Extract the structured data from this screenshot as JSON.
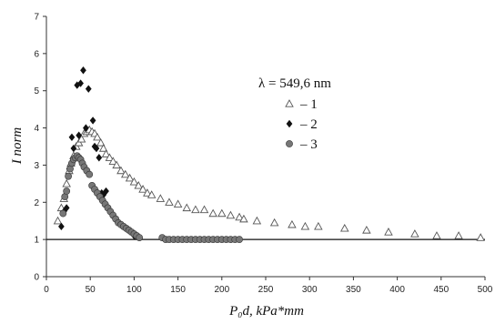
{
  "chart_data": {
    "type": "scatter",
    "xlabel": "P₀d, kPa*mm",
    "ylabel": "I norm",
    "xlim": [
      0,
      500
    ],
    "ylim": [
      0,
      7
    ],
    "xticks": [
      0,
      50,
      100,
      150,
      200,
      250,
      300,
      350,
      400,
      450,
      500
    ],
    "yticks": [
      0,
      1,
      2,
      3,
      4,
      5,
      6,
      7
    ],
    "reference_line": {
      "y": 1
    },
    "grid": false,
    "legend_title": "λ = 549,6 nm",
    "legend_position": "upper-right",
    "series": [
      {
        "name": "– 1",
        "marker": "triangle-open",
        "points": [
          [
            13,
            1.5
          ],
          [
            17,
            1.85
          ],
          [
            20,
            2.1
          ],
          [
            23,
            2.5
          ],
          [
            26,
            2.85
          ],
          [
            28,
            3.05
          ],
          [
            31,
            3.25
          ],
          [
            34,
            3.5
          ],
          [
            37,
            3.6
          ],
          [
            40,
            3.7
          ],
          [
            43,
            3.85
          ],
          [
            46,
            3.9
          ],
          [
            49,
            3.95
          ],
          [
            52,
            3.9
          ],
          [
            55,
            3.85
          ],
          [
            58,
            3.75
          ],
          [
            62,
            3.6
          ],
          [
            65,
            3.45
          ],
          [
            68,
            3.3
          ],
          [
            72,
            3.2
          ],
          [
            76,
            3.1
          ],
          [
            80,
            3.0
          ],
          [
            85,
            2.85
          ],
          [
            90,
            2.75
          ],
          [
            95,
            2.65
          ],
          [
            100,
            2.55
          ],
          [
            105,
            2.45
          ],
          [
            110,
            2.35
          ],
          [
            115,
            2.25
          ],
          [
            120,
            2.2
          ],
          [
            130,
            2.1
          ],
          [
            140,
            2.0
          ],
          [
            150,
            1.95
          ],
          [
            160,
            1.85
          ],
          [
            170,
            1.8
          ],
          [
            180,
            1.8
          ],
          [
            190,
            1.7
          ],
          [
            200,
            1.7
          ],
          [
            210,
            1.65
          ],
          [
            220,
            1.6
          ],
          [
            225,
            1.55
          ],
          [
            240,
            1.5
          ],
          [
            260,
            1.45
          ],
          [
            280,
            1.4
          ],
          [
            295,
            1.35
          ],
          [
            310,
            1.35
          ],
          [
            340,
            1.3
          ],
          [
            365,
            1.25
          ],
          [
            390,
            1.2
          ],
          [
            420,
            1.15
          ],
          [
            445,
            1.1
          ],
          [
            470,
            1.1
          ],
          [
            495,
            1.05
          ]
        ]
      },
      {
        "name": "– 2",
        "marker": "diamond-filled",
        "points": [
          [
            17,
            1.35
          ],
          [
            20,
            1.75
          ],
          [
            23,
            1.85
          ],
          [
            26,
            2.9
          ],
          [
            29,
            3.75
          ],
          [
            31,
            3.45
          ],
          [
            35,
            5.15
          ],
          [
            37,
            3.8
          ],
          [
            39,
            5.2
          ],
          [
            42,
            5.55
          ],
          [
            45,
            4.0
          ],
          [
            48,
            5.05
          ],
          [
            53,
            4.2
          ],
          [
            55,
            3.5
          ],
          [
            57,
            3.45
          ],
          [
            60,
            3.2
          ],
          [
            63,
            2.25
          ],
          [
            65,
            2.2
          ],
          [
            68,
            2.3
          ],
          [
            100,
            1.1
          ]
        ]
      },
      {
        "name": "– 3",
        "marker": "circle-filled",
        "points": [
          [
            19,
            1.7
          ],
          [
            21,
            2.15
          ],
          [
            23,
            2.3
          ],
          [
            25,
            2.7
          ],
          [
            27,
            2.9
          ],
          [
            29,
            3.05
          ],
          [
            31,
            3.15
          ],
          [
            33,
            3.2
          ],
          [
            35,
            3.25
          ],
          [
            37,
            3.2
          ],
          [
            39,
            3.15
          ],
          [
            41,
            3.05
          ],
          [
            43,
            2.95
          ],
          [
            46,
            2.85
          ],
          [
            49,
            2.75
          ],
          [
            52,
            2.45
          ],
          [
            55,
            2.35
          ],
          [
            58,
            2.25
          ],
          [
            61,
            2.15
          ],
          [
            64,
            2.05
          ],
          [
            67,
            1.95
          ],
          [
            70,
            1.85
          ],
          [
            73,
            1.75
          ],
          [
            76,
            1.65
          ],
          [
            79,
            1.55
          ],
          [
            82,
            1.45
          ],
          [
            85,
            1.4
          ],
          [
            88,
            1.35
          ],
          [
            91,
            1.3
          ],
          [
            94,
            1.25
          ],
          [
            97,
            1.2
          ],
          [
            100,
            1.15
          ],
          [
            103,
            1.1
          ],
          [
            106,
            1.05
          ],
          [
            132,
            1.05
          ],
          [
            136,
            1.0
          ],
          [
            140,
            1.0
          ],
          [
            145,
            1.0
          ],
          [
            150,
            1.0
          ],
          [
            155,
            1.0
          ],
          [
            160,
            1.0
          ],
          [
            165,
            1.0
          ],
          [
            170,
            1.0
          ],
          [
            175,
            1.0
          ],
          [
            180,
            1.0
          ],
          [
            185,
            1.0
          ],
          [
            190,
            1.0
          ],
          [
            195,
            1.0
          ],
          [
            200,
            1.0
          ],
          [
            205,
            1.0
          ],
          [
            210,
            1.0
          ],
          [
            215,
            1.0
          ],
          [
            220,
            1.0
          ]
        ]
      }
    ]
  }
}
